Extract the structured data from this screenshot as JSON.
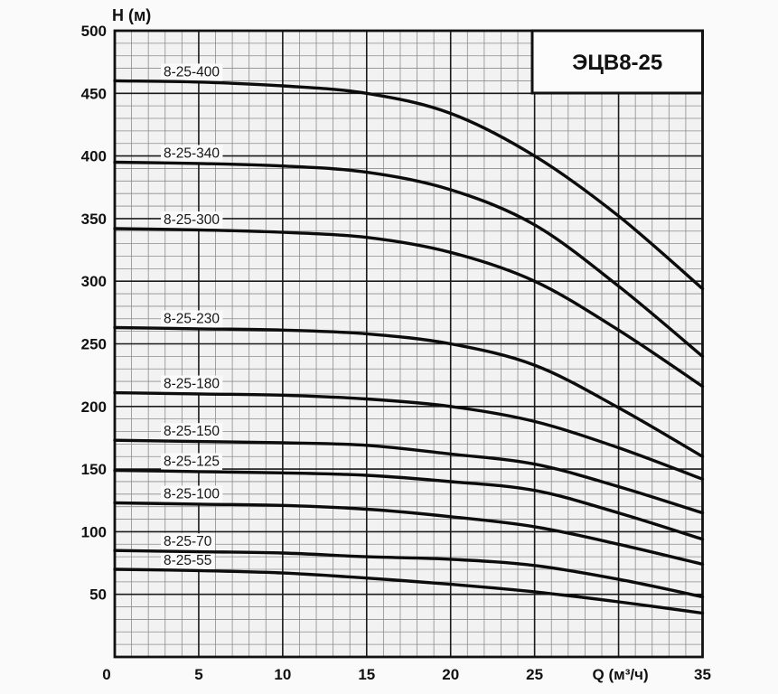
{
  "model": {
    "label": "ЭЦВ8-25"
  },
  "axes": {
    "y_label": "H (м)",
    "x_label": "Q (м³/ч)",
    "y_ticks": [
      500,
      450,
      400,
      350,
      300,
      250,
      200,
      150,
      100,
      50
    ],
    "x_ticks": [
      {
        "q": 0,
        "label": "0"
      },
      {
        "q": 5,
        "label": "5"
      },
      {
        "q": 10,
        "label": "10"
      },
      {
        "q": 15,
        "label": "15"
      },
      {
        "q": 20,
        "label": "20"
      },
      {
        "q": 25,
        "label": "25"
      },
      {
        "q": 30,
        "label": "Q (м³/ч)"
      },
      {
        "q": 35,
        "label": "35"
      }
    ]
  },
  "chart_data": {
    "type": "line",
    "title": "ЭЦВ8-25",
    "xlabel": "Q (м³/ч)",
    "ylabel": "H (м)",
    "xlim": [
      0,
      35
    ],
    "ylim": [
      0,
      500
    ],
    "x_major_step": 5,
    "x_minor_step": 1,
    "y_major_step": 50,
    "y_minor_step": 10,
    "grid": true,
    "legend_position": "inline-curve-labels",
    "x": [
      0,
      5,
      10,
      15,
      20,
      25,
      30,
      35
    ],
    "series": [
      {
        "name": "8-25-400",
        "values": [
          460,
          459,
          456,
          450,
          434,
          400,
          352,
          294
        ]
      },
      {
        "name": "8-25-340",
        "values": [
          395,
          394,
          392,
          387,
          373,
          345,
          296,
          240
        ]
      },
      {
        "name": "8-25-300",
        "values": [
          342,
          341,
          339,
          335,
          323,
          300,
          261,
          216
        ]
      },
      {
        "name": "8-25-230",
        "values": [
          263,
          262,
          261,
          258,
          250,
          233,
          199,
          160
        ]
      },
      {
        "name": "8-25-180",
        "values": [
          211,
          210,
          209,
          206,
          200,
          188,
          167,
          142
        ]
      },
      {
        "name": "8-25-150",
        "values": [
          173,
          172,
          171,
          169,
          162,
          154,
          136,
          115
        ]
      },
      {
        "name": "8-25-125",
        "values": [
          149,
          148,
          147,
          145,
          140,
          133,
          115,
          94
        ]
      },
      {
        "name": "8-25-100",
        "values": [
          123,
          122,
          121,
          118,
          112,
          104,
          90,
          74
        ]
      },
      {
        "name": "8-25-70",
        "values": [
          85,
          84,
          83,
          80,
          78,
          73,
          62,
          48
        ]
      },
      {
        "name": "8-25-55",
        "values": [
          70,
          69,
          67,
          63,
          58,
          52,
          44,
          35
        ]
      }
    ]
  },
  "colors": {
    "page_background": "#fafafa",
    "plot_background": "#f2f2f2",
    "label_patch": "#fafafa",
    "title_box_fill": "#fcfcfc",
    "grid_minor": "#8c8c8c",
    "grid_major": "#1b1b1b",
    "frame": "#111111",
    "curve": "#0c0c0c",
    "text": "#111111"
  }
}
